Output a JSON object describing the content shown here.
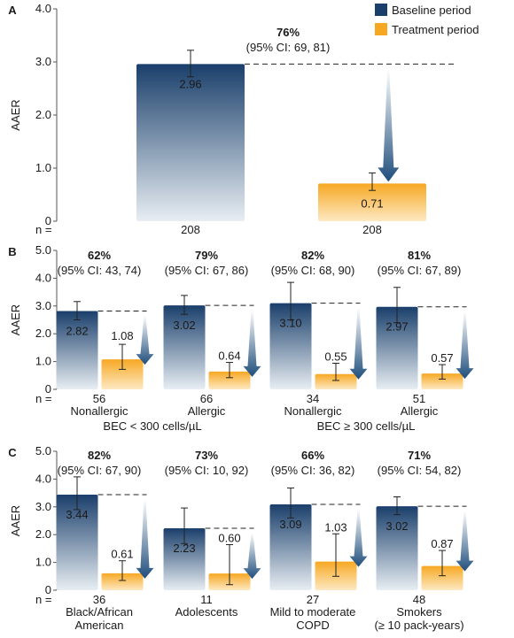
{
  "legend": {
    "baseline_label": "Baseline period",
    "treatment_label": "Treatment period"
  },
  "colors": {
    "baseline_top": "#1a3f6b",
    "baseline_bottom": "#e8eef3",
    "treatment_top": "#f7a823",
    "treatment_bottom": "#fde9c2",
    "arrow": "#1f4e7c",
    "text": "#1a1a1a"
  },
  "chart_data": [
    {
      "type": "bar",
      "panel_label": "A",
      "ylabel": "AAER",
      "ylim": [
        0,
        4
      ],
      "yticks": [
        "0",
        "1.0",
        "2.0",
        "3.0",
        "4.0"
      ],
      "n_label": "n =",
      "groups": [
        {
          "n": "208",
          "n_treatment": "208",
          "subgroup_label": [],
          "baseline": {
            "value": 2.96,
            "label": "2.96",
            "ci": [
              2.72,
              3.22
            ]
          },
          "treatment": {
            "value": 0.71,
            "label": "0.71",
            "ci": [
              0.58,
              0.91
            ]
          },
          "reduction": "76%",
          "ci_text": "(95% CI: 69, 81)"
        }
      ],
      "bottom_labels": []
    },
    {
      "type": "bar",
      "panel_label": "B",
      "ylabel": "AAER",
      "ylim": [
        0,
        5
      ],
      "yticks": [
        "0",
        "1.0",
        "2.0",
        "3.0",
        "4.0",
        "5.0"
      ],
      "n_label": "n =",
      "groups": [
        {
          "n": "56",
          "subgroup_label": [
            "Nonallergic"
          ],
          "baseline": {
            "value": 2.82,
            "label": "2.82",
            "ci": [
              2.5,
              3.16
            ]
          },
          "treatment": {
            "value": 1.08,
            "label": "1.08",
            "ci": [
              0.72,
              1.62
            ]
          },
          "reduction": "62%",
          "ci_text": "(95% CI: 43, 74)"
        },
        {
          "n": "66",
          "subgroup_label": [
            "Allergic"
          ],
          "baseline": {
            "value": 3.02,
            "label": "3.02",
            "ci": [
              2.7,
              3.38
            ]
          },
          "treatment": {
            "value": 0.64,
            "label": "0.64",
            "ci": [
              0.42,
              0.97
            ]
          },
          "reduction": "79%",
          "ci_text": "(95% CI: 67, 86)"
        },
        {
          "n": "34",
          "subgroup_label": [
            "Nonallergic"
          ],
          "baseline": {
            "value": 3.1,
            "label": "3.10",
            "ci": [
              2.5,
              3.85
            ]
          },
          "treatment": {
            "value": 0.55,
            "label": "0.55",
            "ci": [
              0.32,
              0.94
            ]
          },
          "reduction": "82%",
          "ci_text": "(95% CI: 68, 90)"
        },
        {
          "n": "51",
          "subgroup_label": [
            "Allergic"
          ],
          "baseline": {
            "value": 2.97,
            "label": "2.97",
            "ci": [
              2.4,
              3.67
            ]
          },
          "treatment": {
            "value": 0.57,
            "label": "0.57",
            "ci": [
              0.37,
              0.89
            ]
          },
          "reduction": "81%",
          "ci_text": "(95% CI: 67, 89)"
        }
      ],
      "bottom_labels": [
        "BEC < 300 cells/µL",
        "BEC ≥ 300 cells/µL"
      ]
    },
    {
      "type": "bar",
      "panel_label": "C",
      "ylabel": "AAER",
      "ylim": [
        0,
        5
      ],
      "yticks": [
        "0",
        "1.0",
        "2.0",
        "3.0",
        "4.0",
        "5.0"
      ],
      "n_label": "n =",
      "groups": [
        {
          "n": "36",
          "subgroup_label": [
            "Black/African",
            "American"
          ],
          "baseline": {
            "value": 3.44,
            "label": "3.44",
            "ci": [
              2.9,
              4.08
            ]
          },
          "treatment": {
            "value": 0.61,
            "label": "0.61",
            "ci": [
              0.35,
              1.06
            ]
          },
          "reduction": "82%",
          "ci_text": "(95% CI: 67, 90)"
        },
        {
          "n": "11",
          "subgroup_label": [
            "Adolescents"
          ],
          "baseline": {
            "value": 2.23,
            "label": "2.23",
            "ci": [
              1.68,
              2.96
            ]
          },
          "treatment": {
            "value": 0.6,
            "label": "0.60",
            "ci": [
              0.2,
              1.64
            ]
          },
          "reduction": "73%",
          "ci_text": "(95% CI: 10, 92)"
        },
        {
          "n": "27",
          "subgroup_label": [
            "Mild to moderate",
            "COPD"
          ],
          "baseline": {
            "value": 3.09,
            "label": "3.09",
            "ci": [
              2.6,
              3.68
            ]
          },
          "treatment": {
            "value": 1.03,
            "label": "1.03",
            "ci": [
              0.5,
              2.03
            ]
          },
          "reduction": "66%",
          "ci_text": "(95% CI: 36, 82)"
        },
        {
          "n": "48",
          "subgroup_label": [
            "Smokers",
            "(≥ 10 pack-years)"
          ],
          "baseline": {
            "value": 3.02,
            "label": "3.02",
            "ci": [
              2.72,
              3.36
            ]
          },
          "treatment": {
            "value": 0.87,
            "label": "0.87",
            "ci": [
              0.52,
              1.43
            ]
          },
          "reduction": "71%",
          "ci_text": "(95% CI: 54, 82)"
        }
      ],
      "bottom_labels": []
    }
  ]
}
